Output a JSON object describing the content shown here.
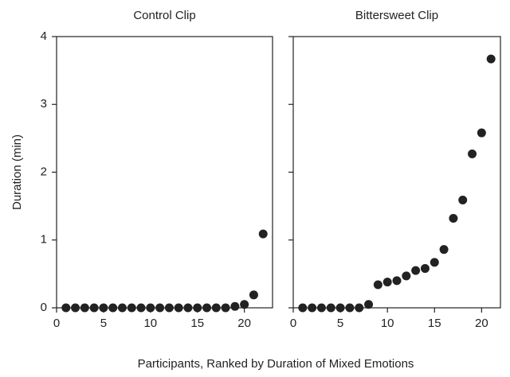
{
  "chart_data": [
    {
      "type": "scatter",
      "title": "Control Clip",
      "ylabel": "Duration (min)",
      "xlabel": "Participants, Ranked by Duration of Mixed Emotions",
      "x": [
        1,
        2,
        3,
        4,
        5,
        6,
        7,
        8,
        9,
        10,
        11,
        12,
        13,
        14,
        15,
        16,
        17,
        18,
        19,
        20,
        21,
        22
      ],
      "y": [
        0,
        0,
        0,
        0,
        0,
        0,
        0,
        0,
        0,
        0,
        0,
        0,
        0,
        0,
        0,
        0,
        0,
        0,
        0.02,
        0.05,
        0.19,
        1.09
      ],
      "color": "#222222",
      "xlim": [
        0,
        23
      ],
      "ylim": [
        0,
        4
      ],
      "xticks": [
        0,
        5,
        10,
        15,
        20
      ],
      "yticks": [
        0,
        1,
        2,
        3,
        4
      ],
      "ytick_labels": true
    },
    {
      "type": "scatter",
      "title": "Bittersweet Clip",
      "x": [
        1,
        2,
        3,
        4,
        5,
        6,
        7,
        8,
        9,
        10,
        11,
        12,
        13,
        14,
        15,
        16,
        17,
        18,
        19,
        20,
        21
      ],
      "y": [
        0,
        0,
        0,
        0,
        0,
        0,
        0,
        0.05,
        0.34,
        0.38,
        0.4,
        0.47,
        0.55,
        0.58,
        0.67,
        0.86,
        1.32,
        1.59,
        2.27,
        2.58,
        3.67
      ],
      "color": "#222222",
      "xlim": [
        0,
        22
      ],
      "ylim": [
        0,
        4
      ],
      "xticks": [
        0,
        5,
        10,
        15,
        20
      ],
      "yticks": [
        0,
        1,
        2,
        3,
        4
      ],
      "ytick_labels": false
    }
  ]
}
